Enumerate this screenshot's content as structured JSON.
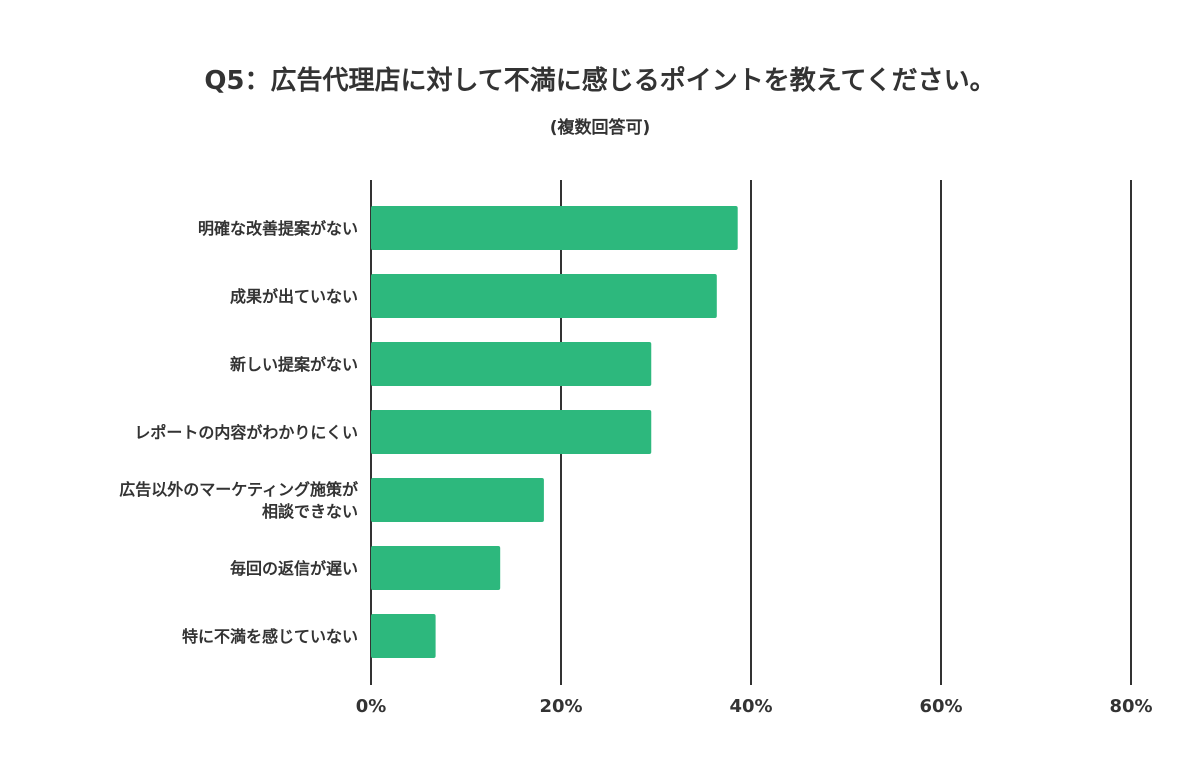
{
  "chart_data": {
    "type": "bar",
    "orientation": "horizontal",
    "title": "Q5：広告代理店に対して不満に感じるポイントを教えてください。",
    "subtitle": "(複数回答可)",
    "categories": [
      "明確な改善提案がない",
      "成果が出ていない",
      "新しい提案がない",
      "レポートの内容がわかりにくい",
      "広告以外のマーケティング施策が相談できない",
      "毎回の返信が遅い",
      "特に不満を感じていない"
    ],
    "category_lines": [
      [
        "明確な改善提案がない"
      ],
      [
        "成果が出ていない"
      ],
      [
        "新しい提案がない"
      ],
      [
        "レポートの内容がわかりにくい"
      ],
      [
        "広告以外のマーケティング施策が",
        "相談できない"
      ],
      [
        "毎回の返信が遅い"
      ],
      [
        "特に不満を感じていない"
      ]
    ],
    "values": [
      38.6,
      36.4,
      29.5,
      29.5,
      18.2,
      13.6,
      6.8
    ],
    "unit": "%",
    "xlim": [
      0,
      80
    ],
    "ticks": [
      0,
      20,
      40,
      60,
      80
    ],
    "tick_labels": [
      "0%",
      "20%",
      "40%",
      "60%",
      "80%"
    ],
    "xlabel": "",
    "ylabel": "",
    "grid": true,
    "legend": "none",
    "colors": {
      "bar": "#2db87d",
      "grid": "#333333",
      "text": "#333333"
    }
  }
}
